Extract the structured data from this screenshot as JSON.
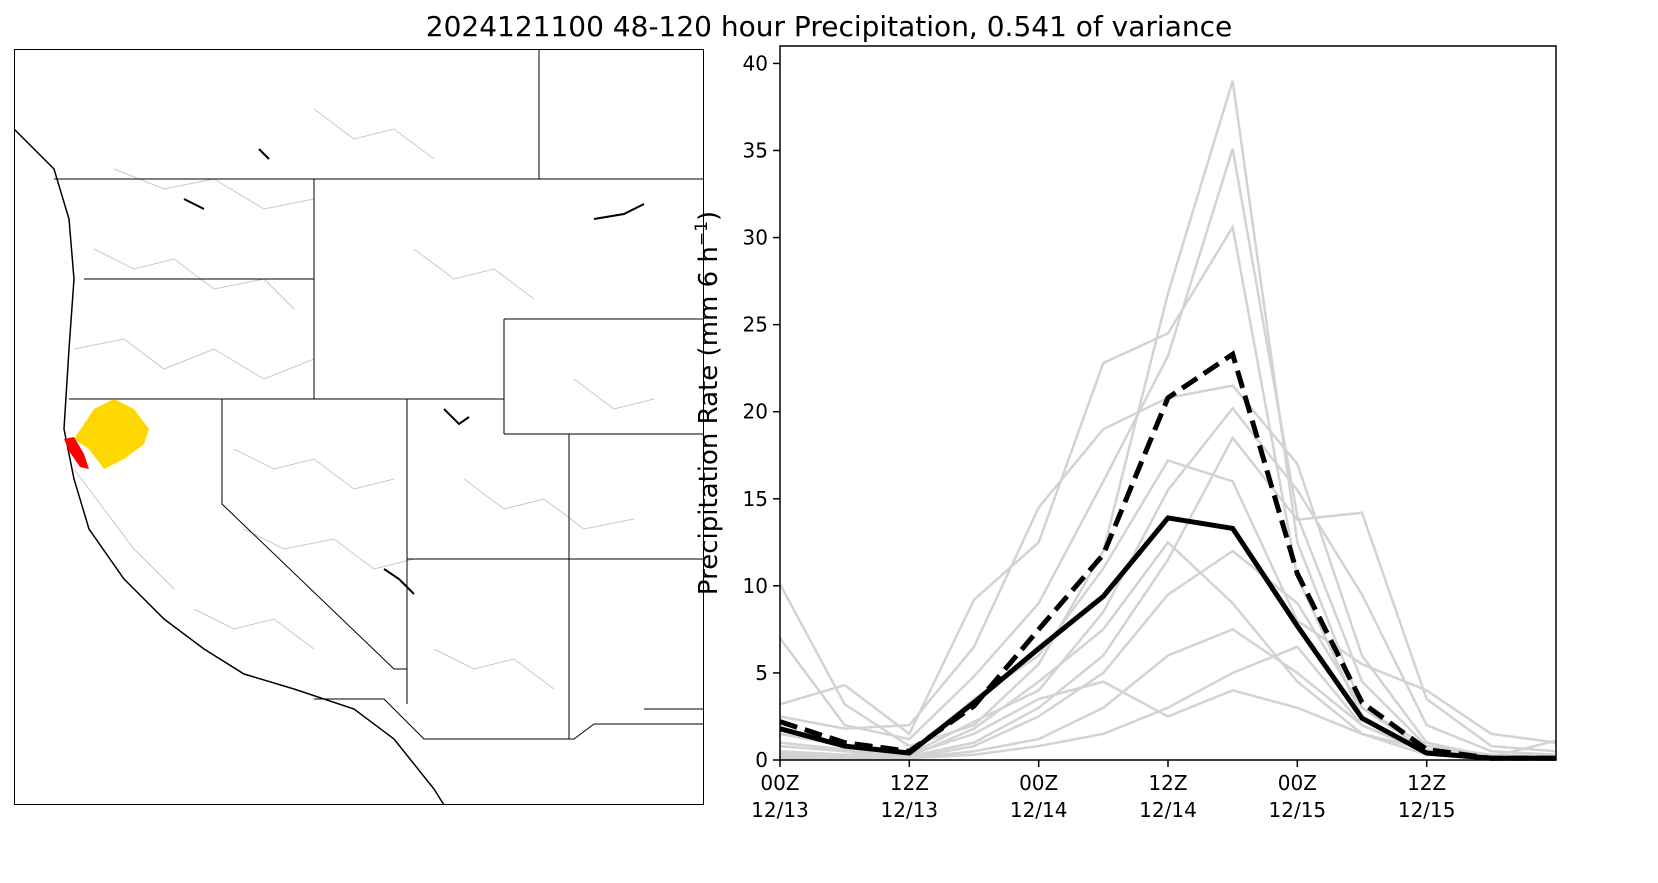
{
  "title": "2024121100 48-120 hour Precipitation, 0.541 of variance",
  "colors": {
    "member_lines": "#d3d3d3",
    "mean_line": "#000000",
    "region_fill": "#ffd700",
    "highlight_fill": "#ff0000",
    "boundary": "#000000",
    "basin": "#c8c8c8"
  },
  "chart_data": {
    "type": "line",
    "title": "2024121100 48-120 hour Precipitation, 0.541 of variance",
    "ylabel": "Precipitation Rate (mm 6 h$^{-1}$)",
    "ylabel_display": "Precipitation Rate (mm 6 h",
    "ylabel_unit_sup": "−1",
    "ylabel_close": ")",
    "xlabel": "",
    "xlim": [
      0,
      6
    ],
    "ylim": [
      0,
      41
    ],
    "yticks": [
      0,
      5,
      10,
      15,
      20,
      25,
      30,
      35,
      40
    ],
    "xticks": [
      {
        "x": 0,
        "line1": "00Z",
        "line2": "12/13"
      },
      {
        "x": 1,
        "line1": "12Z",
        "line2": "12/13"
      },
      {
        "x": 2,
        "line1": "00Z",
        "line2": "12/14"
      },
      {
        "x": 3,
        "line1": "12Z",
        "line2": "12/14"
      },
      {
        "x": 4,
        "line1": "00Z",
        "line2": "12/15"
      },
      {
        "x": 5,
        "line1": "12Z",
        "line2": "12/15"
      }
    ],
    "x": [
      0,
      0.5,
      1,
      1.5,
      2,
      2.5,
      3,
      3.5,
      4,
      4.5,
      5,
      5.5,
      6
    ],
    "series": [
      {
        "style": "solid-black",
        "values": [
          1.8,
          0.8,
          0.4,
          3.3,
          6.4,
          9.4,
          13.9,
          13.3,
          7.7,
          2.4,
          0.4,
          0.1,
          0.1
        ]
      },
      {
        "style": "dashed-black",
        "values": [
          2.2,
          1.0,
          0.5,
          3.1,
          7.5,
          11.8,
          20.8,
          23.3,
          10.7,
          3.3,
          0.6,
          0.1,
          0.1
        ]
      }
    ],
    "members": [
      [
        10.1,
        3.2,
        0.8,
        2.0,
        5.5,
        12.0,
        26.8,
        39.0,
        12.5,
        3.0,
        0.5,
        0.2,
        0.1
      ],
      [
        7.0,
        2.0,
        1.2,
        4.8,
        9.0,
        16.0,
        23.2,
        35.1,
        14.0,
        4.5,
        0.8,
        0.2,
        0.1
      ],
      [
        3.2,
        4.3,
        1.5,
        9.2,
        12.5,
        22.8,
        24.5,
        30.6,
        10.5,
        2.5,
        0.4,
        0.1,
        0.1
      ],
      [
        2.5,
        1.8,
        2.0,
        6.5,
        14.5,
        19.0,
        20.8,
        21.5,
        17.0,
        6.0,
        1.0,
        0.2,
        0.1
      ],
      [
        1.5,
        0.8,
        0.3,
        2.2,
        4.0,
        8.5,
        15.5,
        20.2,
        15.5,
        9.5,
        2.0,
        0.5,
        0.3
      ],
      [
        0.8,
        0.5,
        0.2,
        1.0,
        3.0,
        6.0,
        11.5,
        18.5,
        13.8,
        14.2,
        3.5,
        0.8,
        0.5
      ],
      [
        0.5,
        0.3,
        0.4,
        3.5,
        6.0,
        11.0,
        17.2,
        16.0,
        8.0,
        5.5,
        4.0,
        1.5,
        1.0
      ],
      [
        0.3,
        0.2,
        0.1,
        0.8,
        2.5,
        5.0,
        9.5,
        12.0,
        9.0,
        3.0,
        0.8,
        0.3,
        0.2
      ],
      [
        0.2,
        0.1,
        0.1,
        0.5,
        1.2,
        3.0,
        6.0,
        7.5,
        5.0,
        2.0,
        0.5,
        0.2,
        0.1
      ],
      [
        1.0,
        0.6,
        0.3,
        1.5,
        3.5,
        4.5,
        2.5,
        4.0,
        3.0,
        1.5,
        0.6,
        0.2,
        1.1
      ],
      [
        0.1,
        0.1,
        0.1,
        0.3,
        0.8,
        1.5,
        3.0,
        5.0,
        6.5,
        2.0,
        0.4,
        0.1,
        0.1
      ],
      [
        0.4,
        0.2,
        0.2,
        1.8,
        4.5,
        7.5,
        12.5,
        9.0,
        4.5,
        1.5,
        0.3,
        0.1,
        0.1
      ]
    ]
  },
  "map_caption": ""
}
